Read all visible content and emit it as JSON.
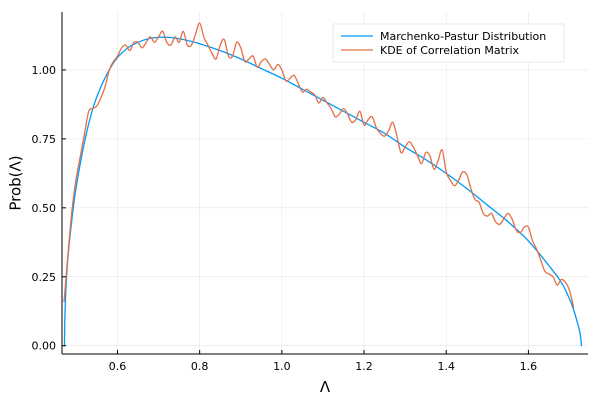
{
  "chart_data": {
    "type": "line",
    "xlabel": "Λ",
    "ylabel": "Prob(Λ)",
    "xlim": [
      0.465,
      1.745
    ],
    "ylim": [
      -0.03,
      1.21
    ],
    "xticks": [
      0.6,
      0.8,
      1.0,
      1.2,
      1.4,
      1.6
    ],
    "xtick_labels": [
      "0.6",
      "0.8",
      "1.0",
      "1.2",
      "1.4",
      "1.6"
    ],
    "yticks": [
      0.0,
      0.25,
      0.5,
      0.75,
      1.0
    ],
    "ytick_labels": [
      "0.00",
      "0.25",
      "0.50",
      "0.75",
      "1.00"
    ],
    "grid": true,
    "legend_position": "top-right",
    "series": [
      {
        "name": "Marchenko-Pastur Distribution",
        "color": "#009AFA",
        "style": "smooth",
        "x": [
          0.471,
          0.472,
          0.475,
          0.48,
          0.49,
          0.5,
          0.52,
          0.54,
          0.56,
          0.58,
          0.6,
          0.625,
          0.65,
          0.675,
          0.7,
          0.725,
          0.75,
          0.775,
          0.8,
          0.85,
          0.9,
          0.95,
          1.0,
          1.05,
          1.1,
          1.15,
          1.2,
          1.25,
          1.3,
          1.35,
          1.4,
          1.45,
          1.5,
          1.55,
          1.6,
          1.65,
          1.68,
          1.7,
          1.71,
          1.72,
          1.725,
          1.728,
          1.729
        ],
        "y": [
          0.0,
          0.1,
          0.22,
          0.33,
          0.47,
          0.58,
          0.74,
          0.86,
          0.94,
          1.0,
          1.045,
          1.08,
          1.1,
          1.113,
          1.118,
          1.118,
          1.113,
          1.105,
          1.095,
          1.07,
          1.04,
          1.005,
          0.97,
          0.93,
          0.89,
          0.85,
          0.81,
          0.77,
          0.72,
          0.675,
          0.625,
          0.57,
          0.51,
          0.45,
          0.38,
          0.29,
          0.23,
          0.17,
          0.13,
          0.08,
          0.05,
          0.02,
          0.0
        ]
      },
      {
        "name": "KDE of Correlation Matrix",
        "color": "#E26F46",
        "style": "smooth",
        "x": [
          0.47,
          0.475,
          0.48,
          0.49,
          0.5,
          0.51,
          0.52,
          0.53,
          0.54,
          0.55,
          0.56,
          0.57,
          0.58,
          0.59,
          0.6,
          0.61,
          0.62,
          0.63,
          0.64,
          0.65,
          0.66,
          0.67,
          0.68,
          0.69,
          0.7,
          0.71,
          0.72,
          0.73,
          0.74,
          0.75,
          0.76,
          0.77,
          0.78,
          0.79,
          0.8,
          0.81,
          0.82,
          0.83,
          0.84,
          0.85,
          0.86,
          0.87,
          0.88,
          0.89,
          0.9,
          0.91,
          0.92,
          0.93,
          0.94,
          0.95,
          0.96,
          0.97,
          0.98,
          0.99,
          1.0,
          1.01,
          1.02,
          1.03,
          1.04,
          1.05,
          1.06,
          1.07,
          1.08,
          1.09,
          1.1,
          1.11,
          1.12,
          1.13,
          1.14,
          1.15,
          1.16,
          1.17,
          1.18,
          1.19,
          1.2,
          1.21,
          1.22,
          1.23,
          1.24,
          1.25,
          1.26,
          1.27,
          1.28,
          1.29,
          1.3,
          1.31,
          1.32,
          1.33,
          1.34,
          1.35,
          1.36,
          1.37,
          1.38,
          1.39,
          1.4,
          1.41,
          1.42,
          1.43,
          1.44,
          1.45,
          1.46,
          1.47,
          1.48,
          1.49,
          1.5,
          1.51,
          1.52,
          1.53,
          1.54,
          1.55,
          1.56,
          1.57,
          1.58,
          1.59,
          1.6,
          1.61,
          1.62,
          1.63,
          1.64,
          1.65,
          1.66,
          1.67,
          1.68,
          1.69,
          1.7,
          1.71
        ],
        "y": [
          0.16,
          0.25,
          0.34,
          0.5,
          0.61,
          0.69,
          0.77,
          0.85,
          0.86,
          0.87,
          0.9,
          0.94,
          1.0,
          1.03,
          1.05,
          1.08,
          1.09,
          1.07,
          1.1,
          1.1,
          1.08,
          1.1,
          1.12,
          1.1,
          1.12,
          1.14,
          1.1,
          1.09,
          1.12,
          1.1,
          1.14,
          1.09,
          1.09,
          1.13,
          1.17,
          1.12,
          1.09,
          1.06,
          1.04,
          1.09,
          1.11,
          1.05,
          1.05,
          1.1,
          1.08,
          1.03,
          1.04,
          1.05,
          1.01,
          1.03,
          1.04,
          1.02,
          1.0,
          1.02,
          1.0,
          0.96,
          0.97,
          0.98,
          0.95,
          0.92,
          0.93,
          0.92,
          0.91,
          0.88,
          0.9,
          0.88,
          0.86,
          0.83,
          0.84,
          0.86,
          0.84,
          0.81,
          0.82,
          0.85,
          0.8,
          0.82,
          0.83,
          0.79,
          0.77,
          0.76,
          0.78,
          0.81,
          0.76,
          0.7,
          0.72,
          0.74,
          0.72,
          0.69,
          0.66,
          0.7,
          0.69,
          0.64,
          0.67,
          0.71,
          0.63,
          0.6,
          0.58,
          0.6,
          0.63,
          0.62,
          0.57,
          0.53,
          0.52,
          0.48,
          0.47,
          0.48,
          0.45,
          0.44,
          0.46,
          0.48,
          0.46,
          0.42,
          0.41,
          0.43,
          0.43,
          0.38,
          0.35,
          0.31,
          0.27,
          0.26,
          0.25,
          0.22,
          0.24,
          0.23,
          0.2,
          0.14
        ]
      }
    ]
  }
}
